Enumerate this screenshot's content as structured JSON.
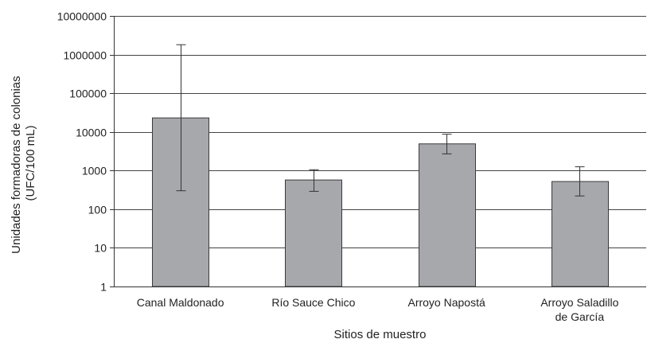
{
  "chart_data": {
    "type": "bar",
    "y_scale": "log",
    "ylim": [
      1,
      10000000
    ],
    "yticks": [
      1,
      10,
      100,
      1000,
      10000,
      100000,
      1000000,
      10000000
    ],
    "ytick_labels": [
      "1",
      "10",
      "100",
      "1000",
      "10000",
      "100000",
      "1000000",
      "10000000"
    ],
    "grid": "horizontal",
    "categories": [
      [
        "Canal Maldonado"
      ],
      [
        "Río Sauce Chico"
      ],
      [
        "Arroyo Napostá"
      ],
      [
        "Arroyo Saladillo",
        "de García"
      ]
    ],
    "values": [
      23000,
      570,
      4900,
      520
    ],
    "error_low": [
      300,
      290,
      2700,
      220
    ],
    "error_high": [
      1800000,
      1050,
      8700,
      1250
    ],
    "xlabel": "Sitios de muestro",
    "ylabel": [
      "Unidades formadoras de colonias",
      "(UFC/100 mL)"
    ],
    "bar_color": "#a7a8ac",
    "bar_edge_color": "#3a3a3a",
    "grid_color": "#444444"
  }
}
